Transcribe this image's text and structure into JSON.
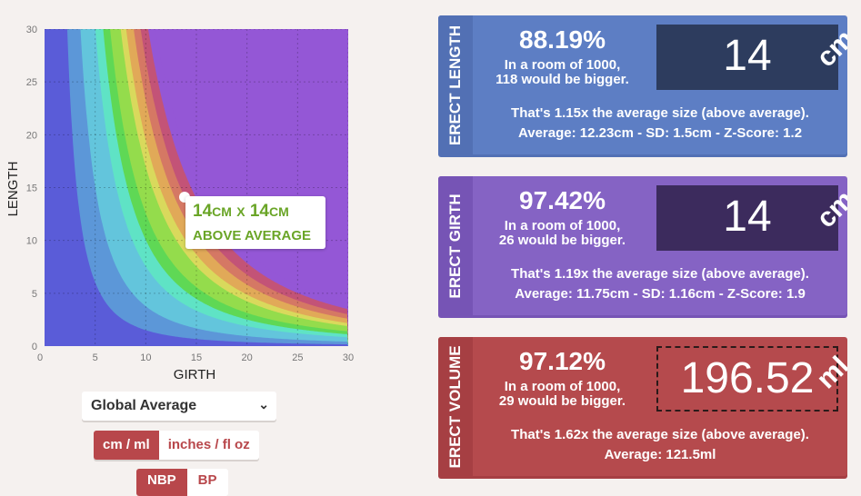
{
  "chart": {
    "xlabel": "GIRTH",
    "ylabel": "LENGTH",
    "xticks": [
      "0",
      "5",
      "10",
      "15",
      "20",
      "25",
      "30"
    ],
    "yticks": [
      "0",
      "5",
      "10",
      "15",
      "20",
      "25",
      "30"
    ],
    "colors": {
      "background": "#9457d6",
      "bands": [
        "#5a5cd8",
        "#5c97d8",
        "#63c5dc",
        "#5fe3c5",
        "#5fd855",
        "#94dc4c",
        "#d9d95c",
        "#e1a958",
        "#d57864",
        "#c35377"
      ]
    },
    "tooltip": {
      "value1": "14",
      "unit1": "CM",
      "x": "X",
      "value2": "14",
      "unit2": "CM",
      "verdict": "ABOVE AVERAGE"
    }
  },
  "chart_data": {
    "type": "area",
    "title": "",
    "xlabel": "GIRTH",
    "ylabel": "LENGTH",
    "xlim": [
      0,
      30
    ],
    "ylim": [
      0,
      30
    ],
    "grid": true,
    "series": [
      {
        "volume": 30,
        "color": "#5c97d8"
      },
      {
        "volume": 60,
        "color": "#63c5dc"
      },
      {
        "volume": 80,
        "color": "#5fe3c5"
      },
      {
        "volume": 100,
        "color": "#5fd855"
      },
      {
        "volume": 135,
        "color": "#94dc4c"
      },
      {
        "volume": 155,
        "color": "#d9d95c"
      },
      {
        "volume": 185,
        "color": "#e1a958"
      },
      {
        "volume": 215,
        "color": "#d57864"
      },
      {
        "volume": 250,
        "color": "#c35377"
      },
      {
        "volume": 285,
        "color": "#9457d6"
      }
    ],
    "point": {
      "girth": 14,
      "length": 14
    }
  },
  "controls": {
    "population_select": "Global Average",
    "unit_metric": "cm / ml",
    "unit_imperial": "inches / fl oz",
    "mode_active": "NBP",
    "mode_inactive": "BP"
  },
  "cards": [
    {
      "title": "ERECT LENGTH",
      "percent": "88.19%",
      "room_line1": "In a room of 1000,",
      "room_line2": "118 would be bigger.",
      "value": "14",
      "unit": "cm",
      "line1": "That's 1.15x the average size (above average).",
      "line2": "Average: 12.23cm - SD: 1.5cm - Z-Score: 1.2",
      "colors": {
        "bg": "#5d7ec4",
        "side": "#5270b4",
        "box": "#2d3c5e"
      }
    },
    {
      "title": "ERECT GIRTH",
      "percent": "97.42%",
      "room_line1": "In a room of 1000,",
      "room_line2": "26 would be bigger.",
      "value": "14",
      "unit": "cm",
      "line1": "That's 1.19x the average size (above average).",
      "line2": "Average: 11.75cm - SD: 1.16cm - Z-Score: 1.9",
      "colors": {
        "bg": "#8563c4",
        "side": "#7654b5",
        "box": "#3c2b5d"
      }
    },
    {
      "title": "ERECT VOLUME",
      "percent": "97.12%",
      "room_line1": "In a room of 1000,",
      "room_line2": "29 would be bigger.",
      "value": "196.52",
      "unit": "ml",
      "line1": "That's 1.62x the average size (above average).",
      "line2": "Average: 121.5ml",
      "colors": {
        "bg": "#b54a4d",
        "side": "#a63f43",
        "box": "transparent"
      }
    }
  ]
}
